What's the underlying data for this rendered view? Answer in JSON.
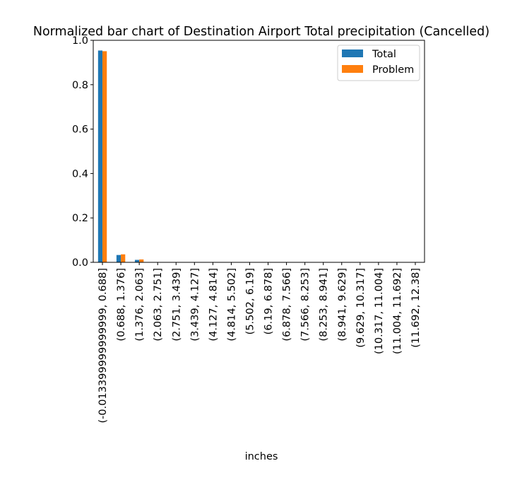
{
  "colors": {
    "total": "#1f77b4",
    "problem": "#ff7f0e",
    "legend_border": "#cccccc",
    "axis": "#000000"
  },
  "chart_data": {
    "type": "bar",
    "title": "Normalized bar chart of Destination Airport Total precipitation (Cancelled)",
    "xlabel": "inches",
    "ylabel": "",
    "ylim": [
      0,
      1.0
    ],
    "yticks": [
      "0.0",
      "0.2",
      "0.4",
      "0.6",
      "0.8",
      "1.0"
    ],
    "grid": false,
    "legend_position": "top-right",
    "categories": [
      "(-0.013399999999999, 0.688]",
      "(0.688, 1.376]",
      "(1.376, 2.063]",
      "(2.063, 2.751]",
      "(2.751, 3.439]",
      "(3.439, 4.127]",
      "(4.127, 4.814]",
      "(4.814, 5.502]",
      "(5.502, 6.19]",
      "(6.19, 6.878]",
      "(6.878, 7.566]",
      "(7.566, 8.253]",
      "(8.253, 8.941]",
      "(8.941, 9.629]",
      "(9.629, 10.317]",
      "(10.317, 11.004]",
      "(11.004, 11.692]",
      "(11.692, 12.38]"
    ],
    "series": [
      {
        "name": "Total",
        "color": "#1f77b4",
        "values": [
          0.954,
          0.033,
          0.011,
          0.001,
          0.0005,
          0,
          0,
          0,
          0,
          0,
          0,
          0,
          0,
          0,
          0,
          0,
          0,
          0
        ]
      },
      {
        "name": "Problem",
        "color": "#ff7f0e",
        "values": [
          0.951,
          0.036,
          0.013,
          0.0005,
          0,
          0,
          0,
          0,
          0,
          0,
          0,
          0,
          0,
          0,
          0,
          0,
          0,
          0
        ]
      }
    ]
  }
}
